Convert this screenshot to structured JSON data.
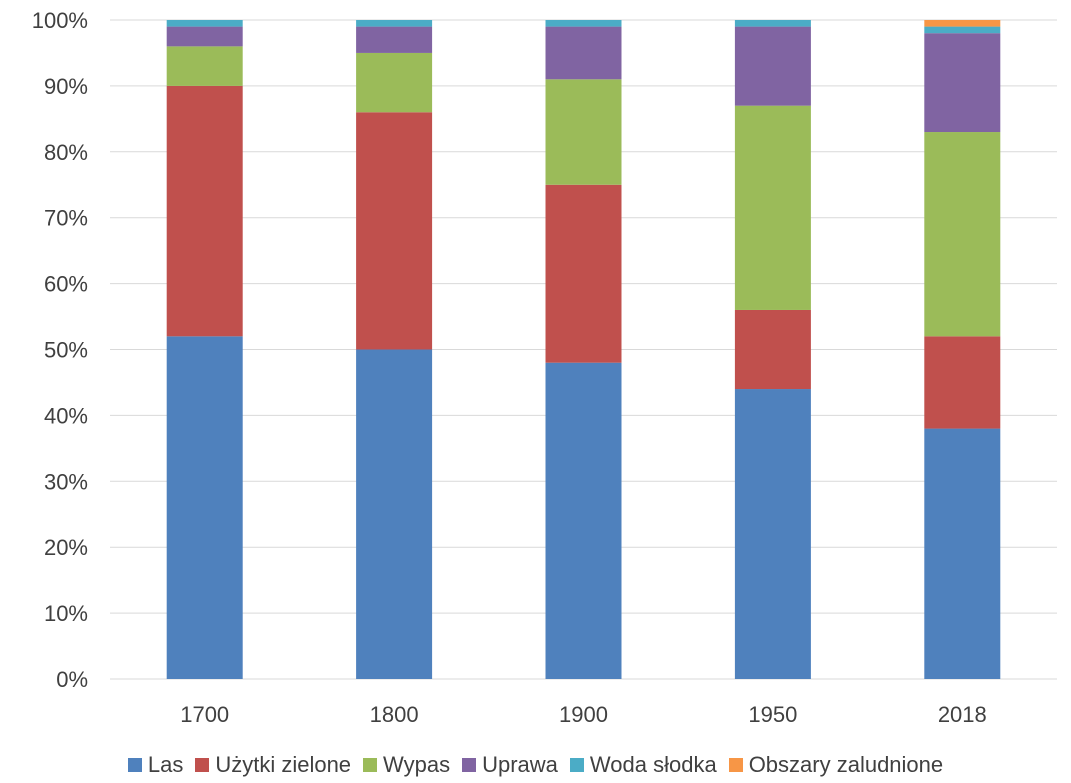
{
  "chart_data": {
    "type": "bar",
    "stacked": true,
    "normalized": true,
    "categories": [
      "1700",
      "1800",
      "1900",
      "1950",
      "2018"
    ],
    "series": [
      {
        "name": "Las",
        "color": "#4F81BD",
        "values": [
          52,
          50,
          48,
          44,
          38
        ]
      },
      {
        "name": "Użytki zielone",
        "color": "#C0504D",
        "values": [
          38,
          36,
          27,
          12,
          14
        ]
      },
      {
        "name": "Wypas",
        "color": "#9BBB59",
        "values": [
          6,
          9,
          16,
          31,
          31
        ]
      },
      {
        "name": "Uprawa",
        "color": "#8064A2",
        "values": [
          3,
          4,
          8,
          12,
          15
        ]
      },
      {
        "name": "Woda słodka",
        "color": "#4BACC6",
        "values": [
          1,
          1,
          1,
          1,
          1
        ]
      },
      {
        "name": "Obszary zaludnione",
        "color": "#F79646",
        "values": [
          0,
          0,
          0,
          0,
          1
        ]
      }
    ],
    "y_ticks": [
      "0%",
      "10%",
      "20%",
      "30%",
      "40%",
      "50%",
      "60%",
      "70%",
      "80%",
      "90%",
      "100%"
    ],
    "ylim": [
      0,
      100
    ],
    "grid": true,
    "legend_position": "bottom",
    "title": "",
    "xlabel": "",
    "ylabel": ""
  }
}
